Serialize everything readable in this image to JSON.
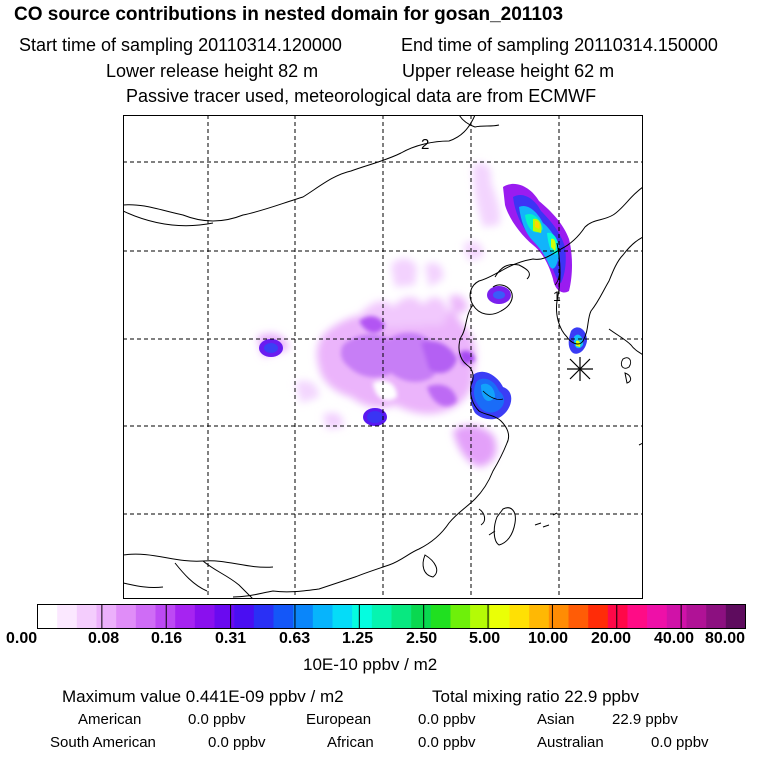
{
  "header": {
    "title": "CO  source contributions in nested domain for gosan_201103",
    "start_label": "Start time of sampling 20110314.120000",
    "end_label": "End time of sampling 20110314.150000",
    "lower_label": "Lower release height   82 m",
    "upper_label": "Upper release height   62 m",
    "tracer_note": "Passive tracer used, meteorological data are from ECMWF"
  },
  "map": {
    "marker_1": "1",
    "marker_2": "2",
    "receptor": "gosan"
  },
  "colorbar": {
    "colors": [
      "#ffffff",
      "#fbe8ff",
      "#f4cdfd",
      "#ecb0fb",
      "#e08df8",
      "#cf6cf6",
      "#bd49f4",
      "#a624f1",
      "#8a10ee",
      "#6a0af0",
      "#4a0ef2",
      "#2a30f5",
      "#1457f8",
      "#0a86fa",
      "#07b4fc",
      "#05dcf8",
      "#05fde0",
      "#06f4b0",
      "#08e880",
      "#0ad850",
      "#20e020",
      "#6ef00a",
      "#b4fb06",
      "#eaff06",
      "#ffe004",
      "#ffb804",
      "#ff8c04",
      "#ff5c06",
      "#ff2c08",
      "#ff0848",
      "#ff0c86",
      "#ee10a8",
      "#d012a8",
      "#b01296",
      "#8c1080",
      "#5e0c5e"
    ],
    "ticks": [
      "0.00",
      "0.08",
      "0.16",
      "0.31",
      "0.63",
      "1.25",
      "2.50",
      "5.00",
      "10.00",
      "20.00",
      "40.00",
      "80.00"
    ],
    "units": "10E-10 ppbv / m2"
  },
  "summary": {
    "max_value": "Maximum value  0.441E-09 ppbv / m2",
    "total_mixing": "Total mixing ratio       22.9 ppbv",
    "american_label": "American",
    "american_value": "0.0 ppbv",
    "european_label": "European",
    "european_value": "0.0 ppbv",
    "asian_label": "Asian",
    "asian_value": "22.9 ppbv",
    "south_american_label": "South American",
    "south_american_value": "0.0 ppbv",
    "african_label": "African",
    "african_value": "0.0 ppbv",
    "australian_label": "Australian",
    "australian_value": "0.0 ppbv"
  }
}
